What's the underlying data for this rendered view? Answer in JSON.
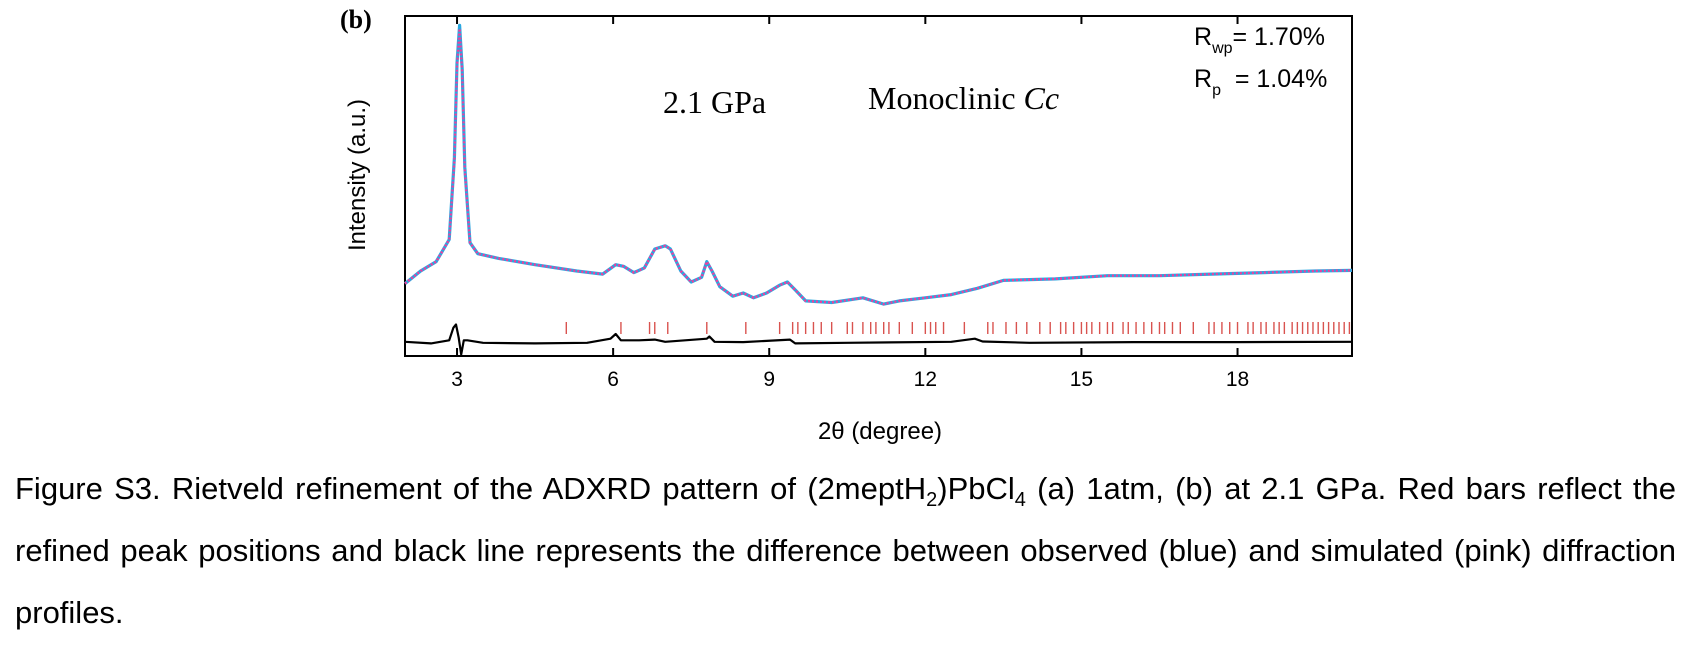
{
  "chart_data": {
    "type": "line",
    "panel_label": "(b)",
    "xlabel": "2θ (degree)",
    "ylabel": "Intensity (a.u.)",
    "xlim": [
      2,
      20.2
    ],
    "ylim": [
      -0.8,
      10
    ],
    "x_ticks": [
      3,
      6,
      9,
      12,
      15,
      18
    ],
    "tick_labels": [
      "3",
      "6",
      "9",
      "12",
      "15",
      "18"
    ],
    "annotations": {
      "pressure": "2.1 GPa",
      "phase_prefix": "Monoclinic ",
      "phase_group": "Cc",
      "rwp_prefix": "R",
      "rwp_sub": "wp",
      "rwp_value": "= 1.70%",
      "rp_prefix": "R",
      "rp_sub": "p",
      "rp_value": "  = 1.04%"
    },
    "series": [
      {
        "role": "observed",
        "color": "#29a8e0",
        "x": [
          2.0,
          2.3,
          2.6,
          2.85,
          2.95,
          3.0,
          3.05,
          3.1,
          3.15,
          3.25,
          3.4,
          3.8,
          4.5,
          5.3,
          5.8,
          6.05,
          6.2,
          6.4,
          6.6,
          6.8,
          7.0,
          7.1,
          7.3,
          7.5,
          7.7,
          7.8,
          7.9,
          8.05,
          8.3,
          8.5,
          8.7,
          8.95,
          9.2,
          9.35,
          9.5,
          9.7,
          10.2,
          10.8,
          11.2,
          11.5,
          12.0,
          12.5,
          13.0,
          13.5,
          14.5,
          15.5,
          16.5,
          17.5,
          18.5,
          19.5,
          20.2
        ],
        "y": [
          1.5,
          1.9,
          2.2,
          2.9,
          5.5,
          8.5,
          9.7,
          8.3,
          5.2,
          2.8,
          2.45,
          2.3,
          2.1,
          1.9,
          1.8,
          2.1,
          2.05,
          1.85,
          2.0,
          2.6,
          2.7,
          2.6,
          1.9,
          1.55,
          1.7,
          2.2,
          1.9,
          1.4,
          1.1,
          1.2,
          1.05,
          1.2,
          1.45,
          1.55,
          1.3,
          0.95,
          0.9,
          1.05,
          0.85,
          0.95,
          1.05,
          1.15,
          1.35,
          1.6,
          1.65,
          1.75,
          1.75,
          1.8,
          1.85,
          1.9,
          1.92
        ]
      },
      {
        "role": "simulated",
        "color": "#ee3e9e",
        "x": [
          2.0,
          2.3,
          2.6,
          2.85,
          2.95,
          3.0,
          3.05,
          3.1,
          3.15,
          3.25,
          3.4,
          3.8,
          4.5,
          5.3,
          5.8,
          6.05,
          6.2,
          6.4,
          6.6,
          6.8,
          7.0,
          7.1,
          7.3,
          7.5,
          7.7,
          7.8,
          7.9,
          8.05,
          8.3,
          8.5,
          8.7,
          8.95,
          9.2,
          9.35,
          9.5,
          9.7,
          10.2,
          10.8,
          11.2,
          11.5,
          12.0,
          12.5,
          13.0,
          13.5,
          14.5,
          15.5,
          16.5,
          17.5,
          18.5,
          19.5,
          20.2
        ],
        "y": [
          1.5,
          1.9,
          2.2,
          2.9,
          5.4,
          8.4,
          9.6,
          8.2,
          5.1,
          2.8,
          2.45,
          2.3,
          2.1,
          1.9,
          1.8,
          2.1,
          2.05,
          1.85,
          2.0,
          2.6,
          2.7,
          2.6,
          1.9,
          1.55,
          1.7,
          2.2,
          1.9,
          1.4,
          1.1,
          1.2,
          1.05,
          1.2,
          1.45,
          1.55,
          1.3,
          0.95,
          0.9,
          1.05,
          0.85,
          0.95,
          1.05,
          1.15,
          1.35,
          1.6,
          1.65,
          1.75,
          1.75,
          1.8,
          1.85,
          1.9,
          1.92
        ]
      },
      {
        "role": "difference",
        "color": "#000000",
        "x": [
          2.0,
          2.5,
          2.85,
          2.93,
          2.98,
          3.03,
          3.08,
          3.13,
          3.2,
          3.5,
          4.5,
          5.5,
          5.95,
          6.05,
          6.15,
          6.5,
          6.8,
          7.0,
          7.8,
          7.85,
          7.95,
          8.5,
          9.4,
          9.5,
          10.5,
          12.5,
          12.95,
          13.1,
          14,
          16,
          18,
          20.2
        ],
        "y": [
          -0.35,
          -0.4,
          -0.3,
          0.1,
          0.2,
          -0.2,
          -0.75,
          -0.3,
          -0.3,
          -0.38,
          -0.4,
          -0.38,
          -0.25,
          -0.1,
          -0.3,
          -0.3,
          -0.28,
          -0.35,
          -0.25,
          -0.18,
          -0.35,
          -0.36,
          -0.28,
          -0.4,
          -0.38,
          -0.35,
          -0.25,
          -0.34,
          -0.38,
          -0.36,
          -0.36,
          -0.35
        ]
      }
    ],
    "peak_positions": {
      "color": "#d9534f",
      "x": [
        5.1,
        6.15,
        6.7,
        6.8,
        7.05,
        7.8,
        8.55,
        9.2,
        9.45,
        9.55,
        9.7,
        9.85,
        10.0,
        10.2,
        10.5,
        10.6,
        10.8,
        10.95,
        11.05,
        11.2,
        11.3,
        11.5,
        11.75,
        12.0,
        12.1,
        12.2,
        12.35,
        12.75,
        13.2,
        13.3,
        13.55,
        13.75,
        13.95,
        14.2,
        14.4,
        14.6,
        14.7,
        14.85,
        15.0,
        15.1,
        15.2,
        15.35,
        15.5,
        15.6,
        15.8,
        15.9,
        16.05,
        16.2,
        16.35,
        16.5,
        16.6,
        16.75,
        16.9,
        17.15,
        17.45,
        17.55,
        17.7,
        17.85,
        18.0,
        18.2,
        18.3,
        18.45,
        18.55,
        18.7,
        18.8,
        18.9,
        19.05,
        19.15,
        19.25,
        19.35,
        19.45,
        19.55,
        19.65,
        19.75,
        19.85,
        19.95,
        20.05,
        20.15
      ]
    }
  },
  "caption": {
    "p1": "Figure S3. Rietveld refinement of the ADXRD pattern of (2meptH",
    "sub1": "2",
    "p2": ")PbCl",
    "sub2": "4",
    "p3": " (a) 1atm, (b) at 2.1 GPa. Red bars reflect the refined peak positions and black line represents the difference between observed (blue) and simulated (pink) diffraction profiles."
  }
}
